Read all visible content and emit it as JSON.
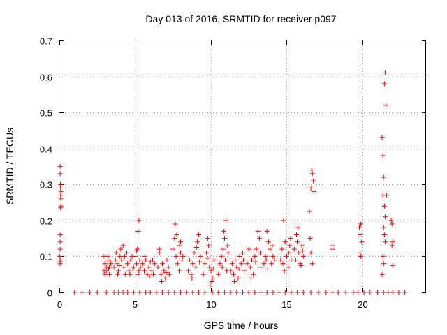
{
  "chart_data": {
    "type": "scatter",
    "title": "Day 013 of 2016, SRMTID for receiver p097",
    "xlabel": "GPS time / hours",
    "ylabel": "SRMTID / TECUs",
    "xlim": [
      0,
      24.2
    ],
    "ylim": [
      0,
      0.7
    ],
    "xticks": [
      0,
      5,
      10,
      15,
      20
    ],
    "yticks": [
      0,
      0.1,
      0.2,
      0.3,
      0.4,
      0.5,
      0.6,
      0.7
    ],
    "xtick_labels": [
      "0",
      "5",
      "10",
      "15",
      "20"
    ],
    "ytick_labels": [
      "0",
      "0.1",
      "0.2",
      "0.3",
      "0.4",
      "0.5",
      "0.6",
      "0.7"
    ],
    "grid": true,
    "marker": "plus",
    "color": "#ff0000",
    "series": [
      {
        "name": "SRMTID",
        "points": [
          [
            0.05,
            0.35
          ],
          [
            0.05,
            0.33
          ],
          [
            0.07,
            0.3
          ],
          [
            0.08,
            0.29
          ],
          [
            0.1,
            0.28
          ],
          [
            0.08,
            0.27
          ],
          [
            0.1,
            0.26
          ],
          [
            0.1,
            0.24
          ],
          [
            0.08,
            0.235
          ],
          [
            0.05,
            0.16
          ],
          [
            0.05,
            0.14
          ],
          [
            0.05,
            0.12
          ],
          [
            0.03,
            0.1
          ],
          [
            0.05,
            0.09
          ],
          [
            0.05,
            0.085
          ],
          [
            0.04,
            0.08
          ],
          [
            2.9,
            0.1
          ],
          [
            3.0,
            0.08
          ],
          [
            3.1,
            0.06
          ],
          [
            3.2,
            0.09
          ],
          [
            3.3,
            0.07
          ],
          [
            3.0,
            0.05
          ],
          [
            3.2,
            0.1
          ],
          [
            3.3,
            0.05
          ],
          [
            3.4,
            0.08
          ],
          [
            3.1,
            0.07
          ],
          [
            2.95,
            0.06
          ],
          [
            3.25,
            0.065
          ],
          [
            3.35,
            0.09
          ],
          [
            3.6,
            0.07
          ],
          [
            3.7,
            0.09
          ],
          [
            3.75,
            0.11
          ],
          [
            3.8,
            0.08
          ],
          [
            3.9,
            0.06
          ],
          [
            4.0,
            0.1
          ],
          [
            4.05,
            0.12
          ],
          [
            3.85,
            0.05
          ],
          [
            3.95,
            0.075
          ],
          [
            4.1,
            0.09
          ],
          [
            4.2,
            0.13
          ],
          [
            4.3,
            0.1
          ],
          [
            4.25,
            0.07
          ],
          [
            4.35,
            0.05
          ],
          [
            4.5,
            0.08
          ],
          [
            4.6,
            0.06
          ],
          [
            4.7,
            0.09
          ],
          [
            4.8,
            0.1
          ],
          [
            4.9,
            0.07
          ],
          [
            4.45,
            0.11
          ],
          [
            4.65,
            0.05
          ],
          [
            4.85,
            0.065
          ],
          [
            5.0,
            0.1
          ],
          [
            5.1,
            0.08
          ],
          [
            5.15,
            0.12
          ],
          [
            5.2,
            0.17
          ],
          [
            5.25,
            0.2
          ],
          [
            5.2,
            0.05
          ],
          [
            5.3,
            0.09
          ],
          [
            5.35,
            0.07
          ],
          [
            5.1,
            0.115
          ],
          [
            5.25,
            0.06
          ],
          [
            5.5,
            0.08
          ],
          [
            5.6,
            0.06
          ],
          [
            5.7,
            0.09
          ],
          [
            5.8,
            0.05
          ],
          [
            5.9,
            0.07
          ],
          [
            6.0,
            0.085
          ],
          [
            6.1,
            0.06
          ],
          [
            6.2,
            0.05
          ],
          [
            6.3,
            0.08
          ],
          [
            5.65,
            0.1
          ],
          [
            5.95,
            0.045
          ],
          [
            6.15,
            0.09
          ],
          [
            6.5,
            0.07
          ],
          [
            6.6,
            0.11
          ],
          [
            6.7,
            0.05
          ],
          [
            6.8,
            0.08
          ],
          [
            6.9,
            0.06
          ],
          [
            7.0,
            0.04
          ],
          [
            7.1,
            0.09
          ],
          [
            7.2,
            0.07
          ],
          [
            6.75,
            0.03
          ],
          [
            7.05,
            0.055
          ],
          [
            6.6,
            0.12
          ],
          [
            7.25,
            0.05
          ],
          [
            7.5,
            0.12
          ],
          [
            7.6,
            0.15
          ],
          [
            7.65,
            0.19
          ],
          [
            7.7,
            0.1
          ],
          [
            7.8,
            0.08
          ],
          [
            7.9,
            0.13
          ],
          [
            8.0,
            0.11
          ],
          [
            8.1,
            0.09
          ],
          [
            8.0,
            0.14
          ],
          [
            7.75,
            0.16
          ],
          [
            7.95,
            0.06
          ],
          [
            8.15,
            0.1
          ],
          [
            8.5,
            0.06
          ],
          [
            8.6,
            0.09
          ],
          [
            8.7,
            0.05
          ],
          [
            8.8,
            0.08
          ],
          [
            8.9,
            0.11
          ],
          [
            9.0,
            0.07
          ],
          [
            9.1,
            0.14
          ],
          [
            9.2,
            0.16
          ],
          [
            9.3,
            0.1
          ],
          [
            8.75,
            0.04
          ],
          [
            9.05,
            0.125
          ],
          [
            9.25,
            0.085
          ],
          [
            9.5,
            0.05
          ],
          [
            9.6,
            0.08
          ],
          [
            9.7,
            0.11
          ],
          [
            9.8,
            0.15
          ],
          [
            9.85,
            0.13
          ],
          [
            9.9,
            0.07
          ],
          [
            10.0,
            0.06
          ],
          [
            10.1,
            0.04
          ],
          [
            10.2,
            0.09
          ],
          [
            10.05,
            0.03
          ],
          [
            9.75,
            0.095
          ],
          [
            10.15,
            0.065
          ],
          [
            9.95,
            0.02
          ],
          [
            10.5,
            0.05
          ],
          [
            10.6,
            0.08
          ],
          [
            10.7,
            0.1
          ],
          [
            10.8,
            0.12
          ],
          [
            10.9,
            0.15
          ],
          [
            11.0,
            0.2
          ],
          [
            11.1,
            0.13
          ],
          [
            10.75,
            0.07
          ],
          [
            10.95,
            0.09
          ],
          [
            11.05,
            0.06
          ],
          [
            10.85,
            0.17
          ],
          [
            11.15,
            0.11
          ],
          [
            11.3,
            0.06
          ],
          [
            11.4,
            0.08
          ],
          [
            11.5,
            0.05
          ],
          [
            11.6,
            0.09
          ],
          [
            11.7,
            0.07
          ],
          [
            11.8,
            0.04
          ],
          [
            11.9,
            0.1
          ],
          [
            12.0,
            0.08
          ],
          [
            12.1,
            0.11
          ],
          [
            12.2,
            0.06
          ],
          [
            11.55,
            0.03
          ],
          [
            11.85,
            0.065
          ],
          [
            12.15,
            0.09
          ],
          [
            12.4,
            0.08
          ],
          [
            12.5,
            0.12
          ],
          [
            12.6,
            0.07
          ],
          [
            12.7,
            0.09
          ],
          [
            12.8,
            0.05
          ],
          [
            12.9,
            0.1
          ],
          [
            13.0,
            0.12
          ],
          [
            13.1,
            0.17
          ],
          [
            13.2,
            0.15
          ],
          [
            13.3,
            0.07
          ],
          [
            12.65,
            0.04
          ],
          [
            12.95,
            0.085
          ],
          [
            13.25,
            0.11
          ],
          [
            13.5,
            0.08
          ],
          [
            13.6,
            0.1
          ],
          [
            13.7,
            0.17
          ],
          [
            13.8,
            0.14
          ],
          [
            13.9,
            0.12
          ],
          [
            14.0,
            0.08
          ],
          [
            14.1,
            0.1
          ],
          [
            14.2,
            0.09
          ],
          [
            13.75,
            0.065
          ],
          [
            14.05,
            0.13
          ],
          [
            13.65,
            0.09
          ],
          [
            14.6,
            0.09
          ],
          [
            14.7,
            0.12
          ],
          [
            14.8,
            0.2
          ],
          [
            14.9,
            0.14
          ],
          [
            15.0,
            0.1
          ],
          [
            15.1,
            0.07
          ],
          [
            15.2,
            0.13
          ],
          [
            15.3,
            0.09
          ],
          [
            14.85,
            0.06
          ],
          [
            15.15,
            0.11
          ],
          [
            14.75,
            0.08
          ],
          [
            15.25,
            0.15
          ],
          [
            15.5,
            0.12
          ],
          [
            15.6,
            0.09
          ],
          [
            15.7,
            0.14
          ],
          [
            15.8,
            0.11
          ],
          [
            15.9,
            0.08
          ],
          [
            16.0,
            0.13
          ],
          [
            16.1,
            0.1
          ],
          [
            15.75,
            0.18
          ],
          [
            15.95,
            0.075
          ],
          [
            15.65,
            0.16
          ],
          [
            16.05,
            0.115
          ],
          [
            16.5,
            0.225
          ],
          [
            16.6,
            0.29
          ],
          [
            16.65,
            0.34
          ],
          [
            16.7,
            0.33
          ],
          [
            16.75,
            0.31
          ],
          [
            16.8,
            0.28
          ],
          [
            16.55,
            0.15
          ],
          [
            16.6,
            0.11
          ],
          [
            16.7,
            0.08
          ],
          [
            18.0,
            0.13
          ],
          [
            18.0,
            0.12
          ],
          [
            19.8,
            0.18
          ],
          [
            19.85,
            0.16
          ],
          [
            19.9,
            0.19
          ],
          [
            19.95,
            0.14
          ],
          [
            19.85,
            0.11
          ],
          [
            19.9,
            0.1
          ],
          [
            21.3,
            0.43
          ],
          [
            21.35,
            0.38
          ],
          [
            21.4,
            0.32
          ],
          [
            21.45,
            0.58
          ],
          [
            21.5,
            0.61
          ],
          [
            21.55,
            0.52
          ],
          [
            21.35,
            0.27
          ],
          [
            21.45,
            0.24
          ],
          [
            21.5,
            0.21
          ],
          [
            21.4,
            0.18
          ],
          [
            21.45,
            0.16
          ],
          [
            21.5,
            0.14
          ],
          [
            21.35,
            0.1
          ],
          [
            21.4,
            0.08
          ],
          [
            21.3,
            0.05
          ],
          [
            21.6,
            0.27
          ],
          [
            21.9,
            0.2
          ],
          [
            21.95,
            0.19
          ],
          [
            22.0,
            0.14
          ],
          [
            21.95,
            0.13
          ],
          [
            22.0,
            0.075
          ],
          [
            1.0,
            0
          ],
          [
            1.5,
            0
          ],
          [
            2.0,
            0
          ],
          [
            2.5,
            0
          ],
          [
            3.1,
            0
          ],
          [
            3.6,
            0
          ],
          [
            3.9,
            0
          ],
          [
            4.2,
            0
          ],
          [
            4.5,
            0
          ],
          [
            4.9,
            0
          ],
          [
            5.3,
            0
          ],
          [
            5.7,
            0
          ],
          [
            6.0,
            0
          ],
          [
            6.4,
            0
          ],
          [
            6.8,
            0
          ],
          [
            7.2,
            0
          ],
          [
            7.6,
            0
          ],
          [
            8.0,
            0
          ],
          [
            8.4,
            0
          ],
          [
            8.8,
            0
          ],
          [
            9.2,
            0
          ],
          [
            9.6,
            0
          ],
          [
            10.1,
            0
          ],
          [
            10.5,
            0
          ],
          [
            10.9,
            0
          ],
          [
            11.3,
            0
          ],
          [
            11.7,
            0
          ],
          [
            12.1,
            0
          ],
          [
            12.5,
            0
          ],
          [
            12.9,
            0
          ],
          [
            13.3,
            0
          ],
          [
            13.7,
            0
          ],
          [
            14.1,
            0
          ],
          [
            14.5,
            0
          ],
          [
            14.9,
            0
          ],
          [
            15.3,
            0
          ],
          [
            15.7,
            0
          ],
          [
            16.1,
            0
          ],
          [
            16.6,
            0
          ],
          [
            17.1,
            0
          ],
          [
            17.6,
            0
          ],
          [
            18.0,
            0
          ],
          [
            18.4,
            0
          ],
          [
            18.9,
            0
          ],
          [
            19.4,
            0
          ],
          [
            19.7,
            0
          ],
          [
            20.1,
            0
          ],
          [
            20.5,
            0
          ],
          [
            21.0,
            0
          ],
          [
            21.4,
            0
          ],
          [
            21.7,
            0
          ],
          [
            22.0,
            0
          ],
          [
            22.4,
            0
          ],
          [
            22.8,
            0
          ]
        ]
      }
    ]
  }
}
